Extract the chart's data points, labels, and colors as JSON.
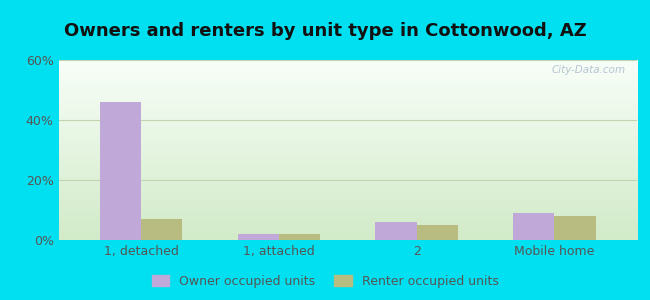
{
  "title": "Owners and renters by unit type in Cottonwood, AZ",
  "title_fontsize": 13,
  "categories": [
    "1, detached",
    "1, attached",
    "2",
    "Mobile home"
  ],
  "owner_values": [
    46,
    2,
    6,
    9
  ],
  "renter_values": [
    7,
    2,
    5,
    8
  ],
  "owner_color": "#c0a8d8",
  "renter_color": "#b8bc80",
  "ylim": [
    0,
    60
  ],
  "yticks": [
    0,
    20,
    40,
    60
  ],
  "ytick_labels": [
    "0%",
    "20%",
    "40%",
    "60%"
  ],
  "outer_bg": "#00e0f0",
  "plot_bg_top": "#e8f5e0",
  "plot_bg_bottom": "#f8fef4",
  "legend_owner": "Owner occupied units",
  "legend_renter": "Renter occupied units",
  "bar_width": 0.3,
  "watermark": "City-Data.com"
}
